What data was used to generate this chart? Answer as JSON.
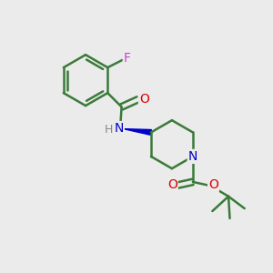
{
  "background_color": "#ebebeb",
  "bond_color": "#3a7a3a",
  "bond_width": 1.8,
  "atom_colors": {
    "F": "#cc44cc",
    "O": "#dd0000",
    "N": "#0000cc",
    "H": "#888888"
  },
  "figsize": [
    3.0,
    3.0
  ],
  "dpi": 100
}
